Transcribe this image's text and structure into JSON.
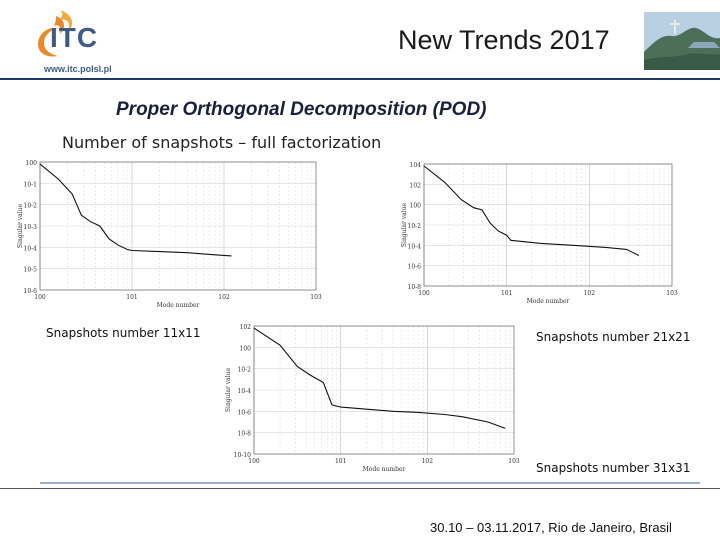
{
  "header": {
    "logo_text": "ITC",
    "logo_url": "www.itc.polsl.pl",
    "conference_title": "New Trends 2017",
    "photo": "rio-landscape-photo"
  },
  "slide": {
    "title": "Proper Orthogonal Decomposition (POD)",
    "subtitle": "Number of snapshots – full factorization"
  },
  "captions": {
    "c11": "Snapshots number 11x11",
    "c21": "Snapshots number 21x21",
    "c31": "Snapshots number 31x31"
  },
  "footer": {
    "text": "30.10 – 03.11.2017, Rio de Janeiro, Brasil"
  },
  "colors": {
    "header_rule": "#1f3b63",
    "footer_rule": "#9bb0cc",
    "accent_orange": "#e8892b",
    "accent_blue": "#3e5a86"
  },
  "chart_data": [
    {
      "type": "line",
      "scale": "log-log",
      "xlabel": "Mode number",
      "ylabel": "Singular value",
      "x_ticks": [
        "10^0",
        "10^1",
        "10^2",
        "10^3"
      ],
      "y_ticks": [
        "10^-6",
        "10^-5",
        "10^-4",
        "10^-3",
        "10^-2",
        "10^-1",
        "10^0"
      ],
      "xlim_log10": [
        0,
        3
      ],
      "ylim_log10": [
        -6,
        0
      ],
      "grid": true,
      "series": [
        {
          "x_log10": [
            0,
            0.2,
            0.35,
            0.45,
            0.55,
            0.65,
            0.75,
            0.85,
            0.95,
            1.0,
            1.3,
            1.6,
            1.9,
            2.08
          ],
          "y_log10": [
            -0.1,
            -0.8,
            -1.5,
            -2.5,
            -2.8,
            -3.0,
            -3.6,
            -3.9,
            -4.1,
            -4.15,
            -4.2,
            -4.25,
            -4.35,
            -4.4
          ]
        }
      ]
    },
    {
      "type": "line",
      "scale": "log-log",
      "xlabel": "Mode number",
      "ylabel": "Singular value",
      "x_ticks": [
        "10^0",
        "10^1",
        "10^2",
        "10^3"
      ],
      "y_ticks": [
        "10^-8",
        "10^-6",
        "10^-4",
        "10^-2",
        "10^0",
        "10^2",
        "10^4"
      ],
      "xlim_log10": [
        0,
        3
      ],
      "ylim_log10": [
        -8,
        4
      ],
      "grid": true,
      "series": [
        {
          "x_log10": [
            0,
            0.25,
            0.45,
            0.6,
            0.7,
            0.8,
            0.9,
            1.0,
            1.05,
            1.4,
            1.8,
            2.2,
            2.45,
            2.6
          ],
          "y_log10": [
            3.8,
            2.2,
            0.5,
            -0.3,
            -0.5,
            -1.8,
            -2.6,
            -3.0,
            -3.5,
            -3.8,
            -4.0,
            -4.2,
            -4.4,
            -5.0
          ]
        }
      ]
    },
    {
      "type": "line",
      "scale": "log-log",
      "xlabel": "Mode number",
      "ylabel": "Singular value",
      "x_ticks": [
        "10^0",
        "10^1",
        "10^2",
        "10^3"
      ],
      "y_ticks": [
        "10^-10",
        "10^-8",
        "10^-6",
        "10^-4",
        "10^-2",
        "10^0",
        "10^2"
      ],
      "xlim_log10": [
        0,
        3
      ],
      "ylim_log10": [
        -10,
        2
      ],
      "grid": true,
      "series": [
        {
          "x_log10": [
            0,
            0.3,
            0.5,
            0.65,
            0.8,
            0.9,
            1.0,
            1.3,
            1.6,
            1.9,
            2.2,
            2.4,
            2.7,
            2.9
          ],
          "y_log10": [
            1.8,
            0.2,
            -1.8,
            -2.6,
            -3.3,
            -5.4,
            -5.6,
            -5.8,
            -6.0,
            -6.1,
            -6.3,
            -6.5,
            -7.0,
            -7.6
          ]
        }
      ]
    }
  ]
}
